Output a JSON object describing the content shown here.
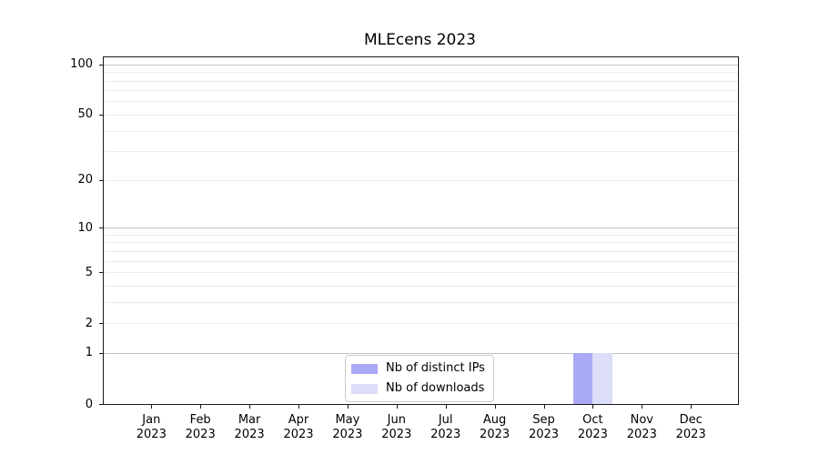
{
  "chart_data": {
    "type": "bar",
    "title": "MLEcens 2023",
    "categories": [
      {
        "month": "Jan",
        "year": "2023"
      },
      {
        "month": "Feb",
        "year": "2023"
      },
      {
        "month": "Mar",
        "year": "2023"
      },
      {
        "month": "Apr",
        "year": "2023"
      },
      {
        "month": "May",
        "year": "2023"
      },
      {
        "month": "Jun",
        "year": "2023"
      },
      {
        "month": "Jul",
        "year": "2023"
      },
      {
        "month": "Aug",
        "year": "2023"
      },
      {
        "month": "Sep",
        "year": "2023"
      },
      {
        "month": "Oct",
        "year": "2023"
      },
      {
        "month": "Nov",
        "year": "2023"
      },
      {
        "month": "Dec",
        "year": "2023"
      }
    ],
    "series": [
      {
        "name": "Nb of distinct IPs",
        "color": "#a9a9f4",
        "values": [
          0,
          0,
          0,
          0,
          0,
          0,
          0,
          0,
          0,
          1,
          0,
          0
        ]
      },
      {
        "name": "Nb of downloads",
        "color": "#dcddf9",
        "values": [
          0,
          0,
          0,
          0,
          0,
          0,
          0,
          0,
          0,
          1,
          0,
          0
        ]
      }
    ],
    "yscale": "log1p",
    "yticks": [
      0,
      1,
      2,
      5,
      10,
      20,
      50,
      100
    ],
    "ylim": [
      0,
      110
    ],
    "xlabel": "",
    "ylabel": "",
    "grid": "horizontal",
    "legend_position": "lower center"
  },
  "colors": {
    "grid_major": "#c3c3c3",
    "grid_minor": "#ebebeb",
    "spine": "#1a1a1a",
    "text": "#000000",
    "legend_border": "#cccccc"
  }
}
